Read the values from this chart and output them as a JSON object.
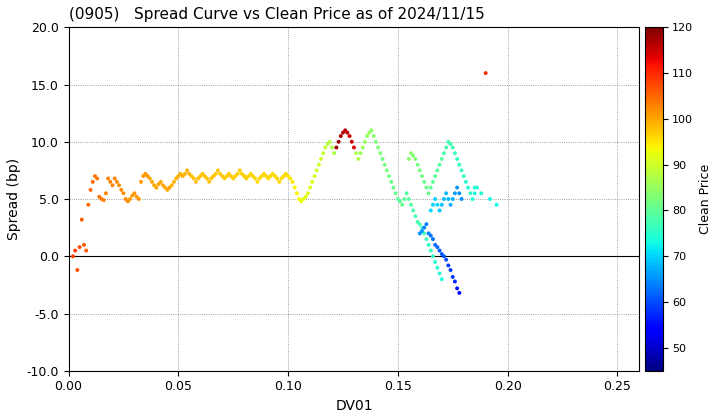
{
  "title": "(0905)   Spread Curve vs Clean Price as of 2024/11/15",
  "xlabel": "DV01",
  "ylabel": "Spread (bp)",
  "colorbar_label": "Clean Price",
  "xlim": [
    0.0,
    0.26
  ],
  "ylim": [
    -10.0,
    20.0
  ],
  "xticks": [
    0.0,
    0.05,
    0.1,
    0.15,
    0.2,
    0.25
  ],
  "yticks": [
    -10.0,
    -5.0,
    0.0,
    5.0,
    10.0,
    15.0,
    20.0
  ],
  "cbar_min": 45,
  "cbar_max": 120,
  "cbar_ticks": [
    50,
    60,
    70,
    80,
    90,
    100,
    110,
    120
  ],
  "points": [
    [
      0.002,
      0.0,
      108
    ],
    [
      0.003,
      0.5,
      108
    ],
    [
      0.004,
      -1.2,
      107
    ],
    [
      0.005,
      0.8,
      107
    ],
    [
      0.006,
      3.2,
      106
    ],
    [
      0.007,
      1.0,
      106
    ],
    [
      0.008,
      0.5,
      106
    ],
    [
      0.009,
      4.5,
      105
    ],
    [
      0.01,
      5.8,
      105
    ],
    [
      0.011,
      6.5,
      105
    ],
    [
      0.012,
      7.0,
      104
    ],
    [
      0.013,
      6.8,
      104
    ],
    [
      0.014,
      5.2,
      104
    ],
    [
      0.015,
      5.0,
      104
    ],
    [
      0.016,
      4.9,
      103
    ],
    [
      0.017,
      5.5,
      103
    ],
    [
      0.018,
      6.8,
      103
    ],
    [
      0.019,
      6.5,
      103
    ],
    [
      0.02,
      6.2,
      103
    ],
    [
      0.021,
      6.8,
      103
    ],
    [
      0.022,
      6.5,
      102
    ],
    [
      0.023,
      6.2,
      102
    ],
    [
      0.024,
      5.8,
      102
    ],
    [
      0.025,
      5.5,
      102
    ],
    [
      0.026,
      5.0,
      102
    ],
    [
      0.027,
      4.8,
      102
    ],
    [
      0.028,
      5.0,
      101
    ],
    [
      0.029,
      5.3,
      101
    ],
    [
      0.03,
      5.5,
      101
    ],
    [
      0.031,
      5.2,
      101
    ],
    [
      0.032,
      5.0,
      101
    ],
    [
      0.033,
      6.5,
      101
    ],
    [
      0.034,
      7.0,
      101
    ],
    [
      0.035,
      7.2,
      101
    ],
    [
      0.036,
      7.0,
      101
    ],
    [
      0.037,
      6.8,
      100
    ],
    [
      0.038,
      6.5,
      100
    ],
    [
      0.039,
      6.2,
      100
    ],
    [
      0.04,
      6.0,
      100
    ],
    [
      0.041,
      6.3,
      100
    ],
    [
      0.042,
      6.5,
      100
    ],
    [
      0.043,
      6.2,
      100
    ],
    [
      0.044,
      6.0,
      100
    ],
    [
      0.045,
      5.8,
      100
    ],
    [
      0.046,
      6.0,
      100
    ],
    [
      0.047,
      6.2,
      99
    ],
    [
      0.048,
      6.5,
      99
    ],
    [
      0.049,
      6.8,
      99
    ],
    [
      0.05,
      7.0,
      99
    ],
    [
      0.051,
      7.2,
      99
    ],
    [
      0.052,
      7.0,
      99
    ],
    [
      0.053,
      7.2,
      99
    ],
    [
      0.054,
      7.5,
      99
    ],
    [
      0.055,
      7.2,
      99
    ],
    [
      0.056,
      7.0,
      98
    ],
    [
      0.057,
      6.8,
      98
    ],
    [
      0.058,
      6.5,
      98
    ],
    [
      0.059,
      6.8,
      98
    ],
    [
      0.06,
      7.0,
      98
    ],
    [
      0.061,
      7.2,
      98
    ],
    [
      0.062,
      7.0,
      98
    ],
    [
      0.063,
      6.8,
      98
    ],
    [
      0.064,
      6.5,
      98
    ],
    [
      0.065,
      6.8,
      98
    ],
    [
      0.066,
      7.0,
      98
    ],
    [
      0.067,
      7.2,
      97
    ],
    [
      0.068,
      7.5,
      97
    ],
    [
      0.069,
      7.2,
      97
    ],
    [
      0.07,
      7.0,
      97
    ],
    [
      0.071,
      6.8,
      97
    ],
    [
      0.072,
      7.0,
      97
    ],
    [
      0.073,
      7.2,
      97
    ],
    [
      0.074,
      7.0,
      97
    ],
    [
      0.075,
      6.8,
      97
    ],
    [
      0.076,
      7.0,
      97
    ],
    [
      0.077,
      7.2,
      97
    ],
    [
      0.078,
      7.5,
      97
    ],
    [
      0.079,
      7.2,
      97
    ],
    [
      0.08,
      7.0,
      97
    ],
    [
      0.081,
      6.8,
      97
    ],
    [
      0.082,
      7.0,
      96
    ],
    [
      0.083,
      7.2,
      96
    ],
    [
      0.084,
      7.0,
      96
    ],
    [
      0.085,
      6.8,
      96
    ],
    [
      0.086,
      6.5,
      96
    ],
    [
      0.087,
      6.8,
      96
    ],
    [
      0.088,
      7.0,
      96
    ],
    [
      0.089,
      7.2,
      96
    ],
    [
      0.09,
      7.0,
      96
    ],
    [
      0.091,
      6.8,
      96
    ],
    [
      0.092,
      7.0,
      96
    ],
    [
      0.093,
      7.2,
      96
    ],
    [
      0.094,
      7.0,
      96
    ],
    [
      0.095,
      6.8,
      96
    ],
    [
      0.096,
      6.5,
      96
    ],
    [
      0.097,
      6.8,
      96
    ],
    [
      0.098,
      7.0,
      96
    ],
    [
      0.099,
      7.2,
      96
    ],
    [
      0.1,
      7.0,
      95
    ],
    [
      0.101,
      6.8,
      95
    ],
    [
      0.102,
      6.5,
      95
    ],
    [
      0.103,
      6.0,
      94
    ],
    [
      0.104,
      5.5,
      94
    ],
    [
      0.105,
      5.0,
      93
    ],
    [
      0.106,
      4.8,
      93
    ],
    [
      0.107,
      5.0,
      92
    ],
    [
      0.108,
      5.2,
      92
    ],
    [
      0.109,
      5.5,
      91
    ],
    [
      0.11,
      6.0,
      91
    ],
    [
      0.111,
      6.5,
      91
    ],
    [
      0.112,
      7.0,
      90
    ],
    [
      0.113,
      7.5,
      90
    ],
    [
      0.114,
      8.0,
      90
    ],
    [
      0.115,
      8.5,
      90
    ],
    [
      0.116,
      9.0,
      89
    ],
    [
      0.117,
      9.5,
      89
    ],
    [
      0.118,
      9.8,
      88
    ],
    [
      0.119,
      10.0,
      88
    ],
    [
      0.12,
      9.5,
      87
    ],
    [
      0.121,
      9.0,
      87
    ],
    [
      0.122,
      9.5,
      118
    ],
    [
      0.123,
      10.0,
      118
    ],
    [
      0.124,
      10.5,
      117
    ],
    [
      0.125,
      10.8,
      117
    ],
    [
      0.126,
      11.0,
      116
    ],
    [
      0.127,
      10.8,
      116
    ],
    [
      0.128,
      10.5,
      115
    ],
    [
      0.129,
      10.0,
      115
    ],
    [
      0.13,
      9.5,
      114
    ],
    [
      0.131,
      9.0,
      87
    ],
    [
      0.132,
      8.5,
      87
    ],
    [
      0.133,
      9.0,
      86
    ],
    [
      0.134,
      9.5,
      86
    ],
    [
      0.135,
      10.0,
      85
    ],
    [
      0.136,
      10.5,
      85
    ],
    [
      0.137,
      10.8,
      85
    ],
    [
      0.138,
      11.0,
      84
    ],
    [
      0.139,
      10.5,
      84
    ],
    [
      0.14,
      10.0,
      83
    ],
    [
      0.141,
      9.5,
      83
    ],
    [
      0.142,
      9.0,
      83
    ],
    [
      0.143,
      8.5,
      82
    ],
    [
      0.144,
      8.0,
      82
    ],
    [
      0.145,
      7.5,
      82
    ],
    [
      0.146,
      7.0,
      82
    ],
    [
      0.147,
      6.5,
      81
    ],
    [
      0.148,
      6.0,
      81
    ],
    [
      0.149,
      5.5,
      81
    ],
    [
      0.15,
      5.0,
      80
    ],
    [
      0.151,
      4.8,
      80
    ],
    [
      0.152,
      4.5,
      80
    ],
    [
      0.153,
      5.0,
      80
    ],
    [
      0.154,
      5.5,
      79
    ],
    [
      0.155,
      5.0,
      79
    ],
    [
      0.156,
      4.5,
      79
    ],
    [
      0.157,
      4.0,
      78
    ],
    [
      0.158,
      3.5,
      78
    ],
    [
      0.159,
      3.0,
      78
    ],
    [
      0.16,
      2.8,
      78
    ],
    [
      0.161,
      2.5,
      77
    ],
    [
      0.162,
      2.0,
      77
    ],
    [
      0.163,
      1.5,
      77
    ],
    [
      0.164,
      1.0,
      76
    ],
    [
      0.165,
      0.5,
      76
    ],
    [
      0.166,
      0.0,
      76
    ],
    [
      0.167,
      -0.5,
      75
    ],
    [
      0.168,
      -1.0,
      75
    ],
    [
      0.169,
      -1.5,
      75
    ],
    [
      0.17,
      -2.0,
      74
    ],
    [
      0.155,
      8.5,
      84
    ],
    [
      0.156,
      9.0,
      84
    ],
    [
      0.157,
      8.8,
      83
    ],
    [
      0.158,
      8.5,
      83
    ],
    [
      0.159,
      8.0,
      82
    ],
    [
      0.16,
      7.5,
      82
    ],
    [
      0.161,
      7.0,
      82
    ],
    [
      0.162,
      6.5,
      81
    ],
    [
      0.163,
      6.0,
      81
    ],
    [
      0.164,
      5.5,
      81
    ],
    [
      0.165,
      6.0,
      80
    ],
    [
      0.166,
      6.5,
      80
    ],
    [
      0.167,
      7.0,
      80
    ],
    [
      0.168,
      7.5,
      79
    ],
    [
      0.169,
      8.0,
      79
    ],
    [
      0.17,
      8.5,
      79
    ],
    [
      0.171,
      9.0,
      78
    ],
    [
      0.172,
      9.5,
      78
    ],
    [
      0.173,
      10.0,
      78
    ],
    [
      0.174,
      9.8,
      77
    ],
    [
      0.175,
      9.5,
      77
    ],
    [
      0.176,
      9.0,
      77
    ],
    [
      0.177,
      8.5,
      76
    ],
    [
      0.178,
      8.0,
      76
    ],
    [
      0.179,
      7.5,
      76
    ],
    [
      0.18,
      7.0,
      76
    ],
    [
      0.181,
      6.5,
      75
    ],
    [
      0.182,
      6.0,
      75
    ],
    [
      0.183,
      5.5,
      75
    ],
    [
      0.184,
      5.0,
      74
    ],
    [
      0.185,
      5.5,
      74
    ],
    [
      0.186,
      6.0,
      73
    ],
    [
      0.16,
      2.0,
      65
    ],
    [
      0.161,
      2.2,
      65
    ],
    [
      0.162,
      2.5,
      64
    ],
    [
      0.163,
      2.8,
      64
    ],
    [
      0.164,
      2.0,
      64
    ],
    [
      0.165,
      1.8,
      63
    ],
    [
      0.166,
      1.5,
      63
    ],
    [
      0.167,
      1.0,
      62
    ],
    [
      0.168,
      0.8,
      62
    ],
    [
      0.169,
      0.5,
      61
    ],
    [
      0.17,
      0.2,
      61
    ],
    [
      0.171,
      0.0,
      60
    ],
    [
      0.172,
      -0.3,
      60
    ],
    [
      0.173,
      -0.8,
      59
    ],
    [
      0.174,
      -1.2,
      59
    ],
    [
      0.175,
      -1.8,
      58
    ],
    [
      0.176,
      -2.2,
      57
    ],
    [
      0.177,
      -2.8,
      56
    ],
    [
      0.178,
      -3.2,
      55
    ],
    [
      0.165,
      4.0,
      70
    ],
    [
      0.166,
      4.5,
      70
    ],
    [
      0.167,
      5.0,
      70
    ],
    [
      0.168,
      4.5,
      70
    ],
    [
      0.169,
      4.0,
      69
    ],
    [
      0.17,
      4.5,
      69
    ],
    [
      0.171,
      5.0,
      68
    ],
    [
      0.172,
      5.5,
      68
    ],
    [
      0.173,
      5.0,
      68
    ],
    [
      0.174,
      4.5,
      67
    ],
    [
      0.175,
      5.0,
      67
    ],
    [
      0.176,
      5.5,
      66
    ],
    [
      0.177,
      6.0,
      65
    ],
    [
      0.178,
      5.5,
      65
    ],
    [
      0.179,
      5.0,
      65
    ],
    [
      0.185,
      6.0,
      75
    ],
    [
      0.188,
      5.5,
      74
    ],
    [
      0.19,
      16.0,
      110
    ],
    [
      0.192,
      5.0,
      73
    ],
    [
      0.195,
      4.5,
      73
    ]
  ]
}
